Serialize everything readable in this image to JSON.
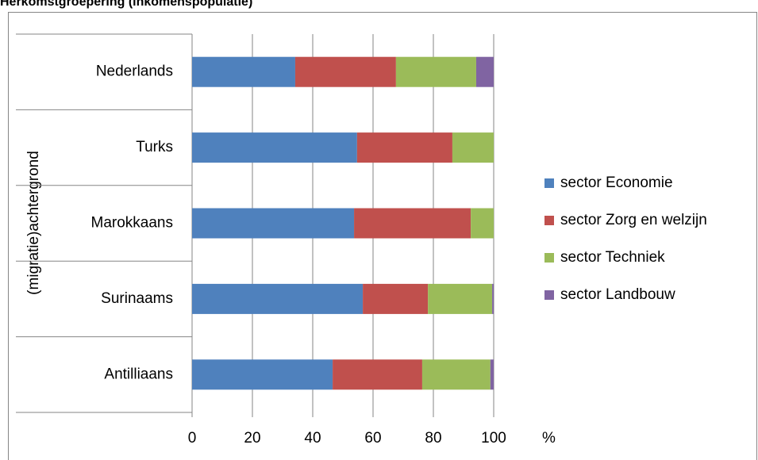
{
  "chart_data": {
    "type": "stacked-barh",
    "title": "Herkomstgroepering (inkomenspopulatie)",
    "y_label": "(migratie)achtergrond",
    "x_unit": "%",
    "categories": [
      "Nederlands",
      "Turks",
      "Marokkaans",
      "Surinaams",
      "Antilliaans"
    ],
    "series": [
      {
        "name": "sector Economie",
        "color": "#4f81bd",
        "values": [
          34.2,
          54.7,
          53.7,
          56.6,
          46.6
        ]
      },
      {
        "name": "sector Zorg en welzijn",
        "color": "#c0504d",
        "values": [
          33.4,
          31.6,
          38.7,
          21.6,
          29.7
        ]
      },
      {
        "name": "sector Techniek",
        "color": "#9bbb59",
        "values": [
          26.6,
          13.7,
          7.6,
          21.3,
          22.6
        ]
      },
      {
        "name": "sector Landbouw",
        "color": "#8064a2",
        "values": [
          5.8,
          0,
          0,
          0.5,
          1.1
        ]
      }
    ],
    "xlim": [
      0,
      100
    ],
    "xticks": [
      0,
      20,
      40,
      60,
      80,
      100
    ],
    "grid": true,
    "legend": "right"
  }
}
